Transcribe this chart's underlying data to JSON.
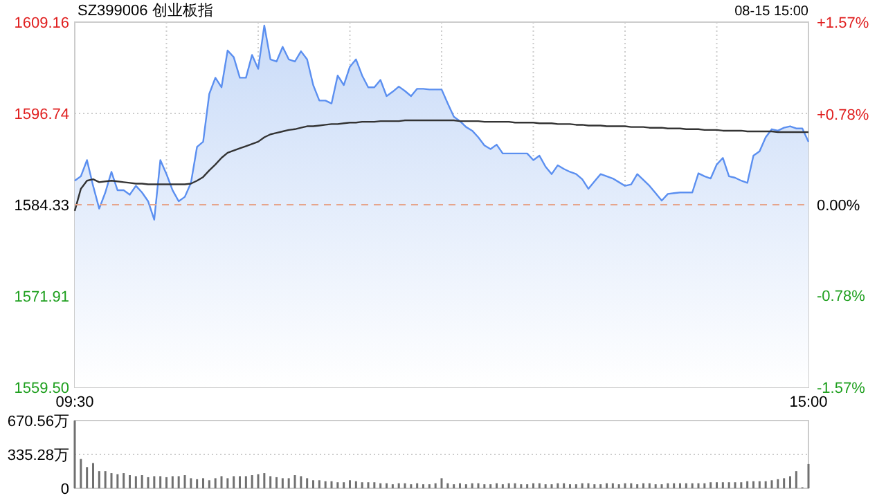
{
  "chart_data": [
    {
      "type": "area",
      "title": "SZ399006 创业板指",
      "annotations": [
        "08-15 15:00"
      ],
      "categories": [
        "09:30",
        null,
        null,
        null,
        null,
        null,
        null,
        null,
        null,
        null,
        null,
        null,
        null,
        null,
        null,
        null,
        null,
        null,
        null,
        null,
        null,
        null,
        null,
        null,
        null,
        null,
        null,
        null,
        null,
        null,
        null,
        null,
        null,
        null,
        null,
        null,
        null,
        null,
        null,
        null,
        null,
        null,
        null,
        null,
        null,
        null,
        null,
        null,
        null,
        null,
        null,
        null,
        null,
        null,
        null,
        null,
        null,
        null,
        null,
        null,
        null,
        null,
        null,
        null,
        null,
        null,
        null,
        null,
        null,
        null,
        null,
        null,
        null,
        null,
        null,
        null,
        null,
        null,
        null,
        null,
        null,
        null,
        null,
        null,
        null,
        null,
        null,
        null,
        null,
        null,
        null,
        null,
        null,
        null,
        null,
        null,
        null,
        null,
        null,
        null,
        null,
        null,
        null,
        null,
        null,
        null,
        null,
        null,
        null,
        null,
        null,
        null,
        null,
        null,
        null,
        null,
        null,
        null,
        null,
        null,
        "15:00"
      ],
      "ylim": [
        1559.5,
        1609.16
      ],
      "yticks": [
        {
          "value": 1559.5,
          "label": "1559.50"
        },
        1571.91,
        1584.33,
        1596.74,
        1609.16
      ],
      "y2lim": [
        -1.57,
        1.57
      ],
      "y2ticks": [
        {
          "value": -1.57,
          "label": "-1.57%"
        },
        {
          "value": -0.78,
          "label": "-0.78%"
        },
        {
          "value": 0,
          "label": "0.00%"
        },
        {
          "value": 0.78,
          "label": "+0.78%"
        },
        {
          "value": 1.57,
          "label": "+1.57%"
        }
      ],
      "grid": true,
      "ref_lines": [
        {
          "axis": "y",
          "value": 1584.33,
          "color": "#e6a58c",
          "line_style": "dashed"
        }
      ],
      "series": [
        {
          "color": "#5b8ff0",
          "values": [
            1587.6,
            1588.2,
            1590.4,
            1586.9,
            1583.8,
            1586.0,
            1588.8,
            1586.3,
            1586.3,
            1585.7,
            1586.9,
            1586.0,
            1584.8,
            1582.3,
            1590.4,
            1588.5,
            1586.3,
            1584.8,
            1585.4,
            1587.3,
            1592.2,
            1592.9,
            1599.4,
            1601.6,
            1600.3,
            1605.3,
            1604.4,
            1601.6,
            1601.6,
            1604.7,
            1602.8,
            1608.7,
            1604.1,
            1603.8,
            1605.8,
            1604.1,
            1603.8,
            1605.2,
            1604.1,
            1600.6,
            1598.5,
            1598.5,
            1598.1,
            1601.9,
            1600.6,
            1603.1,
            1604.1,
            1601.9,
            1600.3,
            1600.3,
            1601.3,
            1599.1,
            1599.7,
            1600.4,
            1599.8,
            1599.1,
            1600.1,
            1600.1,
            1600.0,
            1600.0,
            1600.0,
            1598.1,
            1596.3,
            1595.7,
            1594.9,
            1594.4,
            1593.5,
            1592.4,
            1591.9,
            1592.5,
            1591.3,
            1591.3,
            1591.3,
            1591.3,
            1591.3,
            1590.4,
            1591.0,
            1589.5,
            1588.5,
            1589.7,
            1589.2,
            1588.8,
            1588.5,
            1587.8,
            1586.5,
            1587.5,
            1588.5,
            1588.2,
            1587.9,
            1587.4,
            1586.9,
            1587.1,
            1588.5,
            1587.7,
            1586.9,
            1585.9,
            1584.9,
            1585.8,
            1585.9,
            1586.0,
            1586.0,
            1586.0,
            1588.6,
            1588.2,
            1587.9,
            1589.8,
            1590.7,
            1588.2,
            1588.0,
            1587.6,
            1587.3,
            1591.0,
            1591.6,
            1593.5,
            1594.6,
            1594.4,
            1594.8,
            1595.0,
            1594.7,
            1594.7,
            1592.9
          ]
        },
        {
          "type": "line",
          "color": "#333333",
          "values": [
            1583.5,
            1586.5,
            1587.6,
            1587.8,
            1587.4,
            1587.5,
            1587.6,
            1587.5,
            1587.4,
            1587.3,
            1587.2,
            1587.2,
            1587.1,
            1587.1,
            1587.1,
            1587.1,
            1587.1,
            1587.1,
            1587.1,
            1587.2,
            1587.6,
            1588.1,
            1589.0,
            1589.8,
            1590.7,
            1591.4,
            1591.7,
            1592.0,
            1592.3,
            1592.6,
            1592.9,
            1593.5,
            1593.9,
            1594.1,
            1594.3,
            1594.5,
            1594.6,
            1594.8,
            1595.0,
            1595.0,
            1595.1,
            1595.2,
            1595.3,
            1595.3,
            1595.4,
            1595.5,
            1595.5,
            1595.6,
            1595.6,
            1595.6,
            1595.7,
            1595.7,
            1595.7,
            1595.7,
            1595.8,
            1595.8,
            1595.8,
            1595.8,
            1595.8,
            1595.8,
            1595.8,
            1595.8,
            1595.8,
            1595.7,
            1595.7,
            1595.7,
            1595.7,
            1595.6,
            1595.6,
            1595.6,
            1595.6,
            1595.6,
            1595.5,
            1595.5,
            1595.5,
            1595.5,
            1595.4,
            1595.4,
            1595.4,
            1595.3,
            1595.3,
            1595.3,
            1595.2,
            1595.2,
            1595.1,
            1595.1,
            1595.1,
            1595.0,
            1595.0,
            1595.0,
            1595.0,
            1594.9,
            1594.9,
            1594.9,
            1594.8,
            1594.8,
            1594.8,
            1594.7,
            1594.7,
            1594.7,
            1594.6,
            1594.6,
            1594.6,
            1594.5,
            1594.5,
            1594.5,
            1594.4,
            1594.4,
            1594.4,
            1594.4,
            1594.3,
            1594.3,
            1594.3,
            1594.3,
            1594.3,
            1594.2,
            1594.2,
            1594.2,
            1594.2,
            1594.2,
            1594.2
          ]
        }
      ]
    },
    {
      "type": "bar",
      "tick_labels": "y",
      "grid": "y",
      "categories": [
        null,
        null,
        null,
        null,
        null,
        null,
        null,
        null,
        null,
        null,
        null,
        null,
        null,
        null,
        null,
        null,
        null,
        null,
        null,
        null,
        null,
        null,
        null,
        null,
        null,
        null,
        null,
        null,
        null,
        null,
        null,
        null,
        null,
        null,
        null,
        null,
        null,
        null,
        null,
        null,
        null,
        null,
        null,
        null,
        null,
        null,
        null,
        null,
        null,
        null,
        null,
        null,
        null,
        null,
        null,
        null,
        null,
        null,
        null,
        null,
        null,
        null,
        null,
        null,
        null,
        null,
        null,
        null,
        null,
        null,
        null,
        null,
        null,
        null,
        null,
        null,
        null,
        null,
        null,
        null,
        null,
        null,
        null,
        null,
        null,
        null,
        null,
        null,
        null,
        null,
        null,
        null,
        null,
        null,
        null,
        null,
        null,
        null,
        null,
        null,
        null,
        null,
        null,
        null,
        null,
        null,
        null,
        null,
        null,
        null,
        null,
        null,
        null,
        null,
        null,
        null,
        null,
        null,
        null,
        null,
        null
      ],
      "ylim": [
        0,
        670.56
      ],
      "yticks": [
        0,
        {
          "value": 335.28,
          "label": "335.28万"
        },
        {
          "value": 670.56,
          "label": "670.56万"
        }
      ],
      "series": [
        {
          "color": "#707070",
          "values": [
            670,
            290,
            210,
            250,
            170,
            170,
            150,
            140,
            150,
            130,
            120,
            130,
            110,
            120,
            120,
            110,
            120,
            120,
            130,
            100,
            90,
            100,
            80,
            100,
            120,
            100,
            120,
            120,
            120,
            130,
            140,
            150,
            120,
            110,
            100,
            100,
            130,
            120,
            100,
            80,
            80,
            70,
            70,
            60,
            60,
            80,
            70,
            60,
            60,
            60,
            50,
            50,
            40,
            50,
            50,
            40,
            50,
            40,
            40,
            50,
            100,
            50,
            40,
            50,
            40,
            50,
            50,
            40,
            40,
            50,
            40,
            50,
            50,
            40,
            40,
            50,
            50,
            40,
            40,
            50,
            50,
            40,
            40,
            50,
            50,
            40,
            40,
            50,
            50,
            40,
            50,
            50,
            40,
            50,
            50,
            40,
            40,
            50,
            50,
            50,
            50,
            50,
            50,
            50,
            60,
            60,
            60,
            60,
            60,
            60,
            70,
            70,
            70,
            70,
            80,
            90,
            100,
            120,
            170,
            10,
            240
          ]
        }
      ]
    }
  ]
}
